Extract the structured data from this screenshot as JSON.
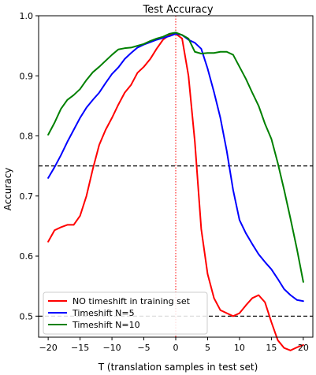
{
  "chart_data": {
    "type": "line",
    "title": "Test Accuracy",
    "xlabel": "T  (translation samples in test set)",
    "ylabel": "Accuracy",
    "xlim": [
      -21.5,
      21.5
    ],
    "ylim": [
      0.465,
      1.0
    ],
    "xticks": [
      -20,
      -15,
      -10,
      -5,
      0,
      5,
      10,
      15,
      20
    ],
    "yticks": [
      0.5,
      0.6,
      0.7,
      0.8,
      0.9,
      1.0
    ],
    "xtick_labels": [
      "−20",
      "−15",
      "−10",
      "−5",
      "0",
      "5",
      "10",
      "15",
      "20"
    ],
    "ytick_labels": [
      "0.5",
      "0.6",
      "0.7",
      "0.8",
      "0.9",
      "1.0"
    ],
    "grid": false,
    "legend_position": "lower-left",
    "hlines": [
      {
        "y": 0.75,
        "style": "dashed",
        "color": "#000000"
      },
      {
        "y": 0.5,
        "style": "dashed",
        "color": "#000000"
      }
    ],
    "vlines": [
      {
        "x": 0,
        "style": "dotted",
        "color": "#ff0000"
      }
    ],
    "series": [
      {
        "name": "NO timeshift in training set",
        "color": "#ff0000",
        "x": [
          -20,
          -19,
          -18,
          -17,
          -16,
          -15,
          -14,
          -13,
          -12,
          -11,
          -10,
          -9,
          -8,
          -7,
          -6,
          -5,
          -4,
          -3,
          -2,
          -1,
          0,
          1,
          2,
          3,
          4,
          5,
          6,
          7,
          8,
          9,
          10,
          11,
          12,
          13,
          14,
          15,
          16,
          17,
          18,
          19,
          20
        ],
        "values": [
          0.624,
          0.643,
          0.648,
          0.652,
          0.652,
          0.667,
          0.7,
          0.745,
          0.785,
          0.81,
          0.83,
          0.852,
          0.872,
          0.885,
          0.905,
          0.915,
          0.928,
          0.945,
          0.96,
          0.968,
          0.97,
          0.962,
          0.9,
          0.79,
          0.645,
          0.57,
          0.53,
          0.51,
          0.505,
          0.5,
          0.505,
          0.518,
          0.53,
          0.535,
          0.523,
          0.49,
          0.46,
          0.447,
          0.443,
          0.448,
          0.452
        ]
      },
      {
        "name": "Timeshift N=5",
        "color": "#0000ff",
        "x": [
          -20,
          -19,
          -18,
          -17,
          -16,
          -15,
          -14,
          -13,
          -12,
          -11,
          -10,
          -9,
          -8,
          -7,
          -6,
          -5,
          -4,
          -3,
          -2,
          -1,
          0,
          1,
          2,
          3,
          4,
          5,
          6,
          7,
          8,
          9,
          10,
          11,
          12,
          13,
          14,
          15,
          16,
          17,
          18,
          19,
          20
        ],
        "values": [
          0.73,
          0.748,
          0.768,
          0.79,
          0.81,
          0.83,
          0.847,
          0.86,
          0.872,
          0.888,
          0.903,
          0.914,
          0.928,
          0.938,
          0.947,
          0.952,
          0.956,
          0.96,
          0.963,
          0.966,
          0.97,
          0.968,
          0.96,
          0.955,
          0.945,
          0.912,
          0.873,
          0.83,
          0.775,
          0.71,
          0.66,
          0.638,
          0.62,
          0.603,
          0.59,
          0.578,
          0.562,
          0.545,
          0.535,
          0.527,
          0.525
        ]
      },
      {
        "name": "Timeshift N=10",
        "color": "#008000",
        "x": [
          -20,
          -19,
          -18,
          -17,
          -16,
          -15,
          -14,
          -13,
          -12,
          -11,
          -10,
          -9,
          -8,
          -7,
          -6,
          -5,
          -4,
          -3,
          -2,
          -1,
          0,
          1,
          2,
          3,
          4,
          5,
          6,
          7,
          8,
          9,
          10,
          11,
          12,
          13,
          14,
          15,
          16,
          17,
          18,
          19,
          20
        ],
        "values": [
          0.802,
          0.822,
          0.845,
          0.86,
          0.868,
          0.878,
          0.893,
          0.906,
          0.915,
          0.925,
          0.935,
          0.944,
          0.946,
          0.947,
          0.95,
          0.953,
          0.958,
          0.962,
          0.965,
          0.97,
          0.972,
          0.968,
          0.962,
          0.94,
          0.937,
          0.938,
          0.938,
          0.94,
          0.94,
          0.935,
          0.915,
          0.895,
          0.872,
          0.85,
          0.82,
          0.795,
          0.755,
          0.71,
          0.662,
          0.612,
          0.557
        ]
      }
    ]
  }
}
